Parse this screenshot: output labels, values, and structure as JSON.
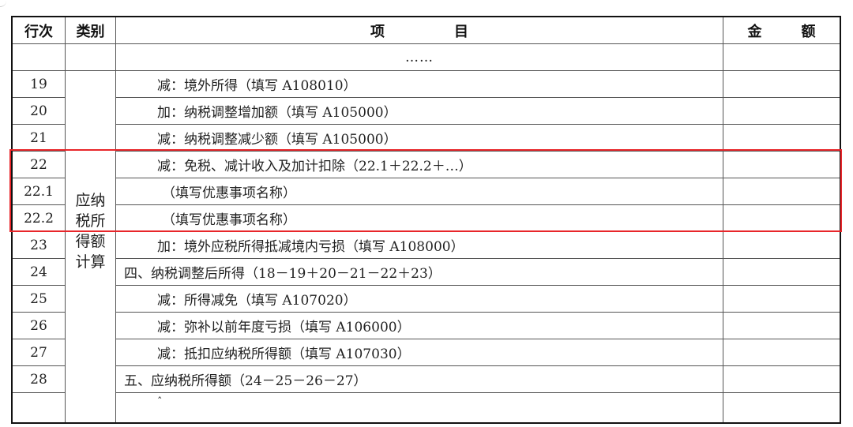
{
  "header": {
    "row_no": "行次",
    "category": "类别",
    "item_chars": [
      "项",
      "目"
    ],
    "amount_chars": [
      "金",
      "额"
    ]
  },
  "ellipsis": "……",
  "category_label_lines": [
    "应纳",
    "税所",
    "得额",
    "计算"
  ],
  "rows": [
    {
      "no": "19",
      "item": "减：境外所得（填写 A108010）",
      "indent": true
    },
    {
      "no": "20",
      "item": "加：纳税调整增加额（填写 A105000）",
      "indent": true
    },
    {
      "no": "21",
      "item": "减：纳税调整减少额（填写 A105000）",
      "indent": true
    },
    {
      "no": "22",
      "item": "减：免税、减计收入及加计扣除（22.1＋22.2＋…）",
      "indent": true
    },
    {
      "no": "22.1",
      "item": "（填写优惠事项名称）",
      "indent": true
    },
    {
      "no": "22.2",
      "item": "（填写优惠事项名称）",
      "indent": true
    },
    {
      "no": "23",
      "item": "加：境外应税所得抵减境内亏损（填写 A108000）",
      "indent": true
    },
    {
      "no": "24",
      "item": "四、纳税调整后所得（18－19＋20－21－22＋23）",
      "indent": false
    },
    {
      "no": "25",
      "item": "减：所得减免（填写 A107020）",
      "indent": true
    },
    {
      "no": "26",
      "item": "减：弥补以前年度亏损（填写 A106000）",
      "indent": true
    },
    {
      "no": "27",
      "item": "减：抵扣应纳税所得额（填写 A107030）",
      "indent": true
    },
    {
      "no": "28",
      "item": "五、应纳税所得额（24－25－26－27）",
      "indent": false
    }
  ],
  "last_row_mark": "ˆ",
  "highlight": {
    "color": "#e8262a",
    "rows": [
      "22",
      "22.1",
      "22.2"
    ]
  }
}
